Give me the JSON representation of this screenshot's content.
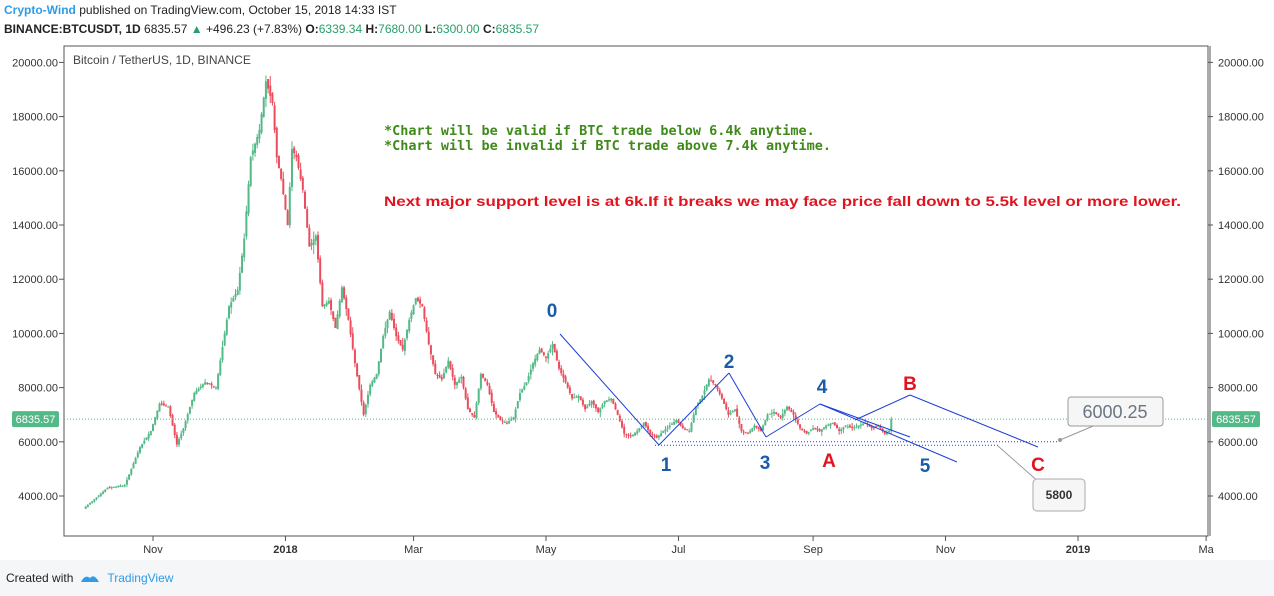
{
  "header": {
    "author": "Crypto-Wind",
    "published_text": "published on TradingView.com, October 15, 2018 14:33 IST",
    "symbol": "BINANCE:BTCUSDT, 1D",
    "last": "6835.57",
    "change": "+496.23 (+7.83%)",
    "open_label": "O:",
    "open": "6339.34",
    "high_label": "H:",
    "high": "7680.00",
    "low_label": "L:",
    "low": "6300.00",
    "close_label": "C:",
    "close": "6835.57"
  },
  "footer": {
    "created_with": "Created with",
    "brand": "TradingView"
  },
  "colors": {
    "up": "#53b987",
    "down": "#eb4d5c",
    "blue": "#1e3ed6",
    "label_blue": "#1b5ca8",
    "label_red": "#e0141e",
    "green_text": "#3f8a1b",
    "red_text": "#e0141e"
  },
  "chart_data": {
    "type": "candlestick",
    "title": "Bitcoin / TetherUS, 1D, BINANCE",
    "ylim": [
      3000,
      21000
    ],
    "y_ticks": [
      4000,
      6000,
      8000,
      10000,
      12000,
      14000,
      16000,
      18000,
      20000
    ],
    "y_tick_labels": [
      "4000.00",
      "6000.00",
      "8000.00",
      "10000.00",
      "12000.00",
      "14000.00",
      "16000.00",
      "18000.00",
      "20000.00"
    ],
    "x_ticks": [
      {
        "label": "Nov",
        "day": 31
      },
      {
        "label": "2018",
        "day": 92
      },
      {
        "label": "Mar",
        "day": 151
      },
      {
        "label": "May",
        "day": 212
      },
      {
        "label": "Jul",
        "day": 273
      },
      {
        "label": "Sep",
        "day": 335
      },
      {
        "label": "Nov",
        "day": 396
      },
      {
        "label": "2019",
        "day": 457
      },
      {
        "label": "Ma",
        "day": 516
      }
    ],
    "x_range_days": [
      0,
      520
    ],
    "price_path": [
      [
        0,
        3600
      ],
      [
        10,
        4300
      ],
      [
        18,
        4400
      ],
      [
        25,
        5800
      ],
      [
        30,
        6400
      ],
      [
        34,
        7400
      ],
      [
        38,
        7300
      ],
      [
        42,
        5900
      ],
      [
        45,
        6500
      ],
      [
        50,
        7800
      ],
      [
        55,
        8200
      ],
      [
        60,
        8000
      ],
      [
        66,
        11000
      ],
      [
        70,
        11600
      ],
      [
        73,
        13500
      ],
      [
        76,
        16500
      ],
      [
        80,
        17500
      ],
      [
        83,
        19300
      ],
      [
        86,
        18500
      ],
      [
        88,
        16500
      ],
      [
        90,
        15700
      ],
      [
        93,
        14000
      ],
      [
        95,
        16800
      ],
      [
        97,
        16500
      ],
      [
        100,
        15300
      ],
      [
        103,
        13200
      ],
      [
        106,
        13600
      ],
      [
        109,
        11000
      ],
      [
        112,
        11200
      ],
      [
        115,
        10200
      ],
      [
        118,
        11700
      ],
      [
        121,
        10500
      ],
      [
        124,
        8900
      ],
      [
        128,
        7000
      ],
      [
        131,
        8100
      ],
      [
        134,
        8500
      ],
      [
        137,
        9900
      ],
      [
        140,
        10800
      ],
      [
        143,
        9900
      ],
      [
        146,
        9400
      ],
      [
        149,
        10500
      ],
      [
        152,
        11300
      ],
      [
        155,
        11000
      ],
      [
        158,
        9600
      ],
      [
        161,
        8500
      ],
      [
        164,
        8300
      ],
      [
        167,
        9000
      ],
      [
        170,
        8100
      ],
      [
        173,
        8400
      ],
      [
        176,
        7200
      ],
      [
        179,
        6900
      ],
      [
        182,
        8500
      ],
      [
        185,
        8100
      ],
      [
        188,
        7100
      ],
      [
        191,
        6800
      ],
      [
        194,
        6700
      ],
      [
        197,
        6900
      ],
      [
        200,
        7800
      ],
      [
        203,
        8200
      ],
      [
        206,
        8900
      ],
      [
        209,
        9400
      ],
      [
        212,
        9100
      ],
      [
        215,
        9600
      ],
      [
        218,
        8700
      ],
      [
        221,
        8200
      ],
      [
        224,
        7600
      ],
      [
        227,
        7700
      ],
      [
        230,
        7200
      ],
      [
        233,
        7500
      ],
      [
        236,
        7100
      ],
      [
        239,
        7500
      ],
      [
        242,
        7600
      ],
      [
        245,
        7000
      ],
      [
        248,
        6300
      ],
      [
        251,
        6200
      ],
      [
        254,
        6400
      ],
      [
        257,
        6700
      ],
      [
        260,
        6300
      ],
      [
        263,
        6150
      ],
      [
        266,
        6400
      ],
      [
        269,
        6600
      ],
      [
        272,
        6800
      ],
      [
        275,
        6500
      ],
      [
        278,
        6400
      ],
      [
        281,
        7300
      ],
      [
        284,
        7700
      ],
      [
        287,
        8300
      ],
      [
        290,
        8100
      ],
      [
        293,
        7600
      ],
      [
        296,
        7000
      ],
      [
        299,
        7200
      ],
      [
        302,
        6400
      ],
      [
        305,
        6300
      ],
      [
        308,
        6600
      ],
      [
        311,
        6400
      ],
      [
        314,
        7000
      ],
      [
        317,
        7100
      ],
      [
        320,
        6900
      ],
      [
        323,
        7300
      ],
      [
        326,
        7000
      ],
      [
        329,
        6500
      ],
      [
        332,
        6300
      ],
      [
        335,
        6500
      ],
      [
        338,
        6400
      ],
      [
        341,
        6600
      ],
      [
        344,
        6700
      ],
      [
        347,
        6400
      ],
      [
        350,
        6600
      ],
      [
        353,
        6500
      ],
      [
        356,
        6600
      ],
      [
        359,
        6700
      ],
      [
        362,
        6500
      ],
      [
        365,
        6600
      ],
      [
        368,
        6300
      ],
      [
        370,
        6400
      ],
      [
        371,
        6836
      ]
    ],
    "wave_lines": [
      [
        [
          560,
          334
        ],
        [
          659,
          445
        ]
      ],
      [
        [
          659,
          445
        ],
        [
          729,
          373
        ]
      ],
      [
        [
          729,
          373
        ],
        [
          766,
          437
        ]
      ],
      [
        [
          766,
          437
        ],
        [
          820,
          404
        ]
      ],
      [
        [
          820,
          404
        ],
        [
          957,
          462
        ]
      ],
      [
        [
          820,
          404
        ],
        [
          910,
          437
        ]
      ],
      [
        [
          855,
          420
        ],
        [
          910,
          395
        ]
      ],
      [
        [
          910,
          395
        ],
        [
          1038,
          447
        ]
      ]
    ],
    "horizontal_levels": [
      {
        "price": 6000.25,
        "label": "6000.25",
        "x_from": 672,
        "x_to": 1058
      },
      {
        "price": 5800,
        "label": "5800",
        "x_from": 655,
        "x_to": 998
      },
      {
        "price": 6835.57,
        "label": "6835.57",
        "x_from": 64,
        "x_to": 1208
      }
    ],
    "wave_labels": [
      {
        "text": "0",
        "color": "blue",
        "x": 552,
        "y": 317
      },
      {
        "text": "1",
        "color": "blue",
        "x": 666,
        "y": 471
      },
      {
        "text": "2",
        "color": "blue",
        "x": 729,
        "y": 368
      },
      {
        "text": "3",
        "color": "blue",
        "x": 765,
        "y": 469
      },
      {
        "text": "4",
        "color": "blue",
        "x": 822,
        "y": 393
      },
      {
        "text": "5",
        "color": "blue",
        "x": 925,
        "y": 472
      },
      {
        "text": "A",
        "color": "red",
        "x": 829,
        "y": 467
      },
      {
        "text": "B",
        "color": "red",
        "x": 910,
        "y": 390
      },
      {
        "text": "C",
        "color": "red",
        "x": 1038,
        "y": 471
      }
    ],
    "annotations": [
      {
        "text": "*Chart will be valid if BTC trade below 6.4k anytime.",
        "color": "green_text"
      },
      {
        "text": "*Chart will be invalid if BTC trade above 7.4k anytime.",
        "color": "green_text"
      },
      {
        "text": "Next major support level is at 6k.If it breaks we may face price fall down to 5.5k level or more lower.",
        "color": "red_text"
      }
    ],
    "callouts": [
      {
        "text": "6000.25"
      },
      {
        "text": "5800"
      }
    ]
  }
}
